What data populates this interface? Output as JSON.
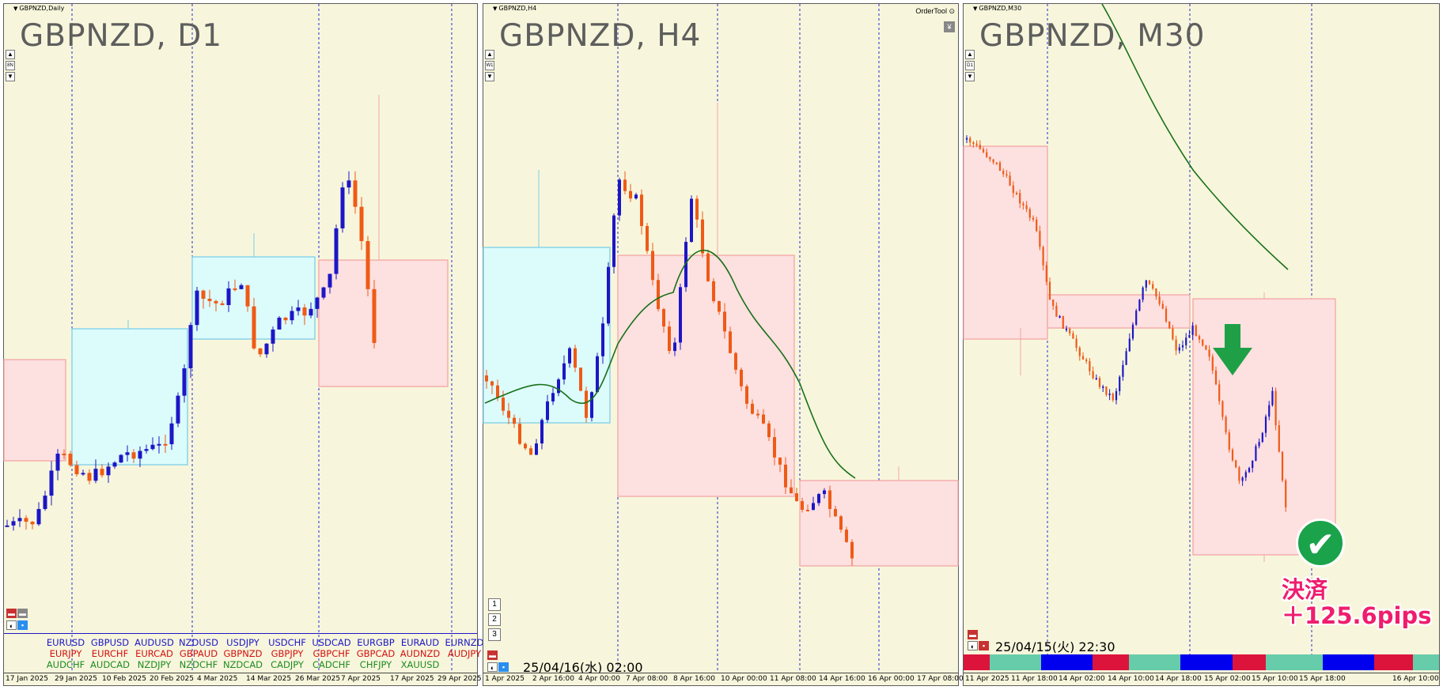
{
  "panels": [
    {
      "id": "d1",
      "window_label": "GBPNZD,Daily",
      "title": "GBPNZD, D1",
      "side_buttons": [
        "▲",
        "8N",
        "▼"
      ],
      "x_labels": [
        "17 Jan 2025",
        "29 Jan 2025",
        "10 Feb 2025",
        "20 Feb 2025",
        "4 Mar 2025",
        "14 Mar 2025",
        "26 Mar 2025",
        "7 Apr 2025",
        "17 Apr 2025",
        "29 Apr 2025"
      ]
    },
    {
      "id": "h4",
      "window_label": "GBPNZD,H4",
      "title": "GBPNZD, H4",
      "side_buttons": [
        "▲",
        "W1",
        "▼"
      ],
      "order_tool": "OrderTool",
      "yen_icon": "¥",
      "number_buttons": [
        "1",
        "2",
        "3"
      ],
      "datetime": "25/04/16(水) 02:00",
      "x_labels": [
        "1 Apr 2025",
        "2 Apr 16:00",
        "4 Apr 00:00",
        "7 Apr 08:00",
        "8 Apr 16:00",
        "10 Apr 00:00",
        "11 Apr 08:00",
        "14 Apr 16:00",
        "16 Apr 00:00",
        "17 Apr 08:00"
      ]
    },
    {
      "id": "m30",
      "window_label": "GBPNZD,M30",
      "title": "GBPNZD, M30",
      "side_buttons": [
        "▲",
        "D1",
        "▼"
      ],
      "datetime": "25/04/15(火) 22:30",
      "x_labels": [
        "11 Apr 2025",
        "11 Apr 18:00",
        "14 Apr 02:00",
        "14 Apr 10:00",
        "14 Apr 18:00",
        "15 Apr 02:00",
        "15 Apr 10:00",
        "15 Apr 18:00",
        "16 Apr 10:00"
      ]
    }
  ],
  "currency_pairs": {
    "row1": [
      "EURUSD",
      "GBPUSD",
      "AUDUSD",
      "NZDUSD",
      "USDJPY",
      "USDCHF",
      "USDCAD",
      "EURGBP",
      "EURAUD",
      "EURNZD"
    ],
    "row2": [
      "EURJPY",
      "EURCHF",
      "EURCAD",
      "GBPAUD",
      "GBPNZD",
      "GBPJPY",
      "GBPCHF",
      "GBPCAD",
      "AUDNZD",
      "AUDJPY"
    ],
    "row3": [
      "AUDCHF",
      "AUDCAD",
      "NZDJPY",
      "NZDCHF",
      "NZDCAD",
      "CADJPY",
      "CADCHF",
      "CHFJPY",
      "XAUUSD"
    ]
  },
  "colors": {
    "bull": "#1c16c6",
    "bear": "#ef5a16",
    "pink_zone": "#fde0e0",
    "blue_zone": "#dcfbfb",
    "ma_line": "#187018",
    "row1_text": "#1c16c6",
    "row2_text": "#d41010",
    "row3_text": "#1e8a1e"
  },
  "annotation": {
    "check_icon": "✔",
    "settle_label": "決済",
    "pips": "＋125.6pips"
  },
  "strip_colors": [
    "#dc143c",
    "#66ccaa",
    "#0000ee",
    "#dc143c",
    "#66ccaa",
    "#0000ee",
    "#dc143c",
    "#66ccaa",
    "#0000ee",
    "#dc143c",
    "#66ccaa"
  ],
  "strip_weights": [
    1,
    2,
    2,
    1.4,
    2,
    2,
    1.3,
    2.2,
    2,
    1.5,
    1
  ]
}
